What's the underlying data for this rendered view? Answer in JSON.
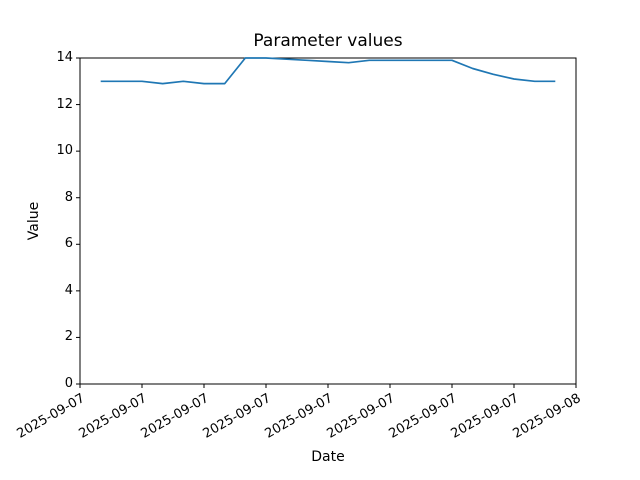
{
  "figure": {
    "background": "#ffffff"
  },
  "chart_data": {
    "type": "line",
    "title": "Parameter values",
    "xlabel": "Date",
    "ylabel": "Value",
    "grid": false,
    "legend": "none",
    "line_color": "#1f77b4",
    "axis_color": "#000000",
    "ylim": [
      0,
      14
    ],
    "y_tick_labels": [
      "0",
      "2",
      "4",
      "6",
      "8",
      "10",
      "12",
      "14"
    ],
    "y_tick_values": [
      0,
      2,
      4,
      6,
      8,
      10,
      12,
      14
    ],
    "x_axis_hours": [
      0,
      24
    ],
    "x_tick_hours": [
      0,
      3,
      6,
      9,
      12,
      15,
      18,
      21,
      24
    ],
    "x_tick_labels": [
      "2025-09-07",
      "2025-09-07",
      "2025-09-07",
      "2025-09-07",
      "2025-09-07",
      "2025-09-07",
      "2025-09-07",
      "2025-09-07",
      "2025-09-08"
    ],
    "series": [
      {
        "name": "Parameter",
        "x_hours": [
          1,
          2,
          3,
          4,
          5,
          6,
          7,
          8,
          9,
          10,
          11,
          12,
          13,
          14,
          15,
          16,
          17,
          18,
          19,
          20,
          21,
          22,
          23
        ],
        "values": [
          13.0,
          13.0,
          13.0,
          12.9,
          13.0,
          12.9,
          12.9,
          14.0,
          14.0,
          13.95,
          13.9,
          13.85,
          13.8,
          13.9,
          13.9,
          13.9,
          13.9,
          13.9,
          13.55,
          13.3,
          13.1,
          13.0,
          13.0
        ]
      }
    ]
  }
}
